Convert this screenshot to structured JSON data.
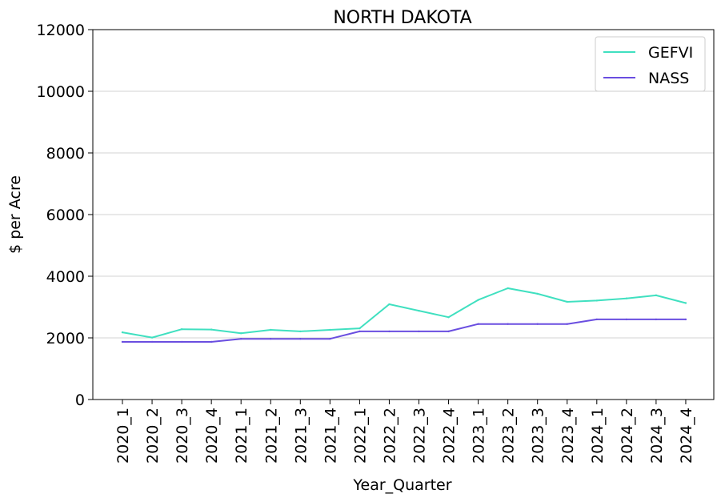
{
  "chart_data": {
    "type": "line",
    "title": "NORTH DAKOTA",
    "xlabel": "Year_Quarter",
    "ylabel": "$ per Acre",
    "ylim": [
      0,
      12000
    ],
    "yticks": [
      0,
      2000,
      4000,
      6000,
      8000,
      10000,
      12000
    ],
    "grid": "horizontal",
    "legend_position": "top-right",
    "categories": [
      "2020_1",
      "2020_2",
      "2020_3",
      "2020_4",
      "2021_1",
      "2021_2",
      "2021_3",
      "2021_4",
      "2022_1",
      "2022_2",
      "2022_3",
      "2022_4",
      "2023_1",
      "2023_2",
      "2023_3",
      "2023_4",
      "2024_1",
      "2024_2",
      "2024_3",
      "2024_4"
    ],
    "series": [
      {
        "name": "GEFVI",
        "color": "#40e0c0",
        "values": [
          2180,
          2010,
          2280,
          2270,
          2150,
          2260,
          2210,
          2260,
          2310,
          3090,
          2880,
          2670,
          3230,
          3610,
          3430,
          3170,
          3210,
          3280,
          3380,
          3130
        ]
      },
      {
        "name": "NASS",
        "color": "#6a4ee0",
        "values": [
          1870,
          1870,
          1870,
          1870,
          1970,
          1970,
          1970,
          1970,
          2210,
          2210,
          2210,
          2210,
          2450,
          2450,
          2450,
          2450,
          2600,
          2600,
          2600,
          2600
        ]
      }
    ]
  }
}
